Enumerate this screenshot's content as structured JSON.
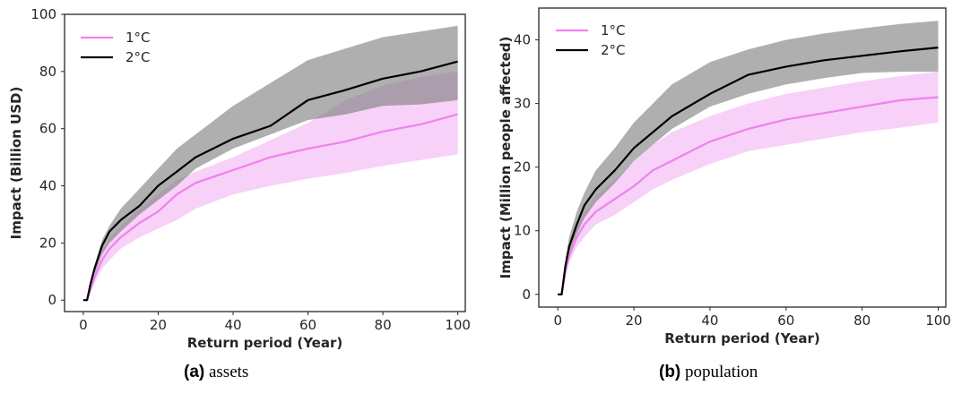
{
  "colors": {
    "one_deg": "#ee82ee",
    "two_deg": "#000000",
    "one_band": "#f2b8f2",
    "two_band": "#7a7a7a"
  },
  "chart_data": [
    {
      "type": "line",
      "caption_label": "(a)",
      "caption_text": "assets",
      "xlabel": "Return period (Year)",
      "ylabel": "Impact (Billion USD)",
      "xlim": [
        -5,
        102
      ],
      "ylim": [
        -4,
        100
      ],
      "xticks": [
        "0",
        "20",
        "40",
        "60",
        "80",
        "100"
      ],
      "yticks": [
        "0",
        "20",
        "40",
        "60",
        "80",
        "100"
      ],
      "legend_position": "top-left",
      "grid": false,
      "x": [
        0,
        1,
        2,
        3,
        5,
        7,
        10,
        15,
        20,
        25,
        30,
        40,
        50,
        60,
        70,
        80,
        90,
        100
      ],
      "series": [
        {
          "name": "1°C",
          "values": [
            0,
            0,
            4,
            8,
            14,
            18,
            22,
            27,
            31,
            37,
            41,
            45.5,
            50,
            53,
            55.5,
            59,
            61.5,
            65
          ],
          "lower": [
            0,
            0,
            3,
            6,
            11,
            14,
            18,
            22,
            25,
            28,
            32,
            37,
            40,
            42.5,
            44.5,
            47,
            49,
            51
          ],
          "upper": [
            0,
            0,
            5,
            10,
            17,
            22,
            26,
            32,
            37,
            42,
            45,
            50,
            56,
            62,
            70,
            75,
            78,
            80
          ]
        },
        {
          "name": "2°C",
          "values": [
            0,
            0,
            6,
            11,
            19,
            24,
            28,
            33,
            40,
            45,
            50,
            56.5,
            61,
            70,
            73.5,
            77.5,
            80,
            83.5
          ],
          "lower": [
            0,
            0,
            5,
            9,
            16,
            20,
            24,
            30,
            35,
            40,
            46,
            53,
            58,
            63,
            65,
            68,
            68.5,
            70
          ],
          "upper": [
            0,
            0,
            7,
            12,
            21,
            26,
            32,
            39,
            46,
            53,
            58,
            68,
            76,
            84,
            88,
            92,
            94,
            96
          ]
        }
      ]
    },
    {
      "type": "line",
      "caption_label": "(b)",
      "caption_text": "population",
      "xlabel": "Return period (Year)",
      "ylabel": "Impact (Million people affected)",
      "xlim": [
        -5,
        102
      ],
      "ylim": [
        -2,
        45
      ],
      "xticks": [
        "0",
        "20",
        "40",
        "60",
        "80",
        "100"
      ],
      "yticks": [
        "0",
        "10",
        "20",
        "30",
        "40"
      ],
      "legend_position": "top-left",
      "grid": false,
      "x": [
        0,
        1,
        2,
        3,
        5,
        7,
        10,
        15,
        20,
        25,
        30,
        40,
        50,
        60,
        70,
        80,
        90,
        100
      ],
      "series": [
        {
          "name": "1°C",
          "values": [
            0,
            0,
            3.5,
            6,
            9,
            11,
            13,
            15,
            17,
            19.5,
            21,
            24,
            26,
            27.5,
            28.5,
            29.5,
            30.5,
            31
          ],
          "lower": [
            0,
            0,
            3,
            5,
            7.5,
            9,
            11,
            12.5,
            14.5,
            16.5,
            18,
            20.5,
            22.5,
            23.5,
            24.5,
            25.5,
            26.2,
            27
          ],
          "upper": [
            0,
            0,
            4.5,
            7.5,
            11,
            13,
            15.5,
            18,
            21,
            23.5,
            25.5,
            28,
            30,
            31.5,
            32.5,
            33.5,
            34.3,
            35
          ]
        },
        {
          "name": "2°C",
          "values": [
            0,
            0,
            4.5,
            7.5,
            11,
            14,
            16.5,
            19.5,
            23,
            25.5,
            28,
            31.5,
            34.5,
            35.8,
            36.8,
            37.5,
            38.2,
            38.8
          ],
          "lower": [
            0,
            0,
            3.5,
            6.5,
            9.5,
            12,
            14.5,
            17.5,
            21,
            23.5,
            26,
            29.5,
            31.5,
            33,
            34,
            34.8,
            35,
            35
          ],
          "upper": [
            0,
            0,
            5.5,
            9,
            13,
            16,
            19.5,
            23,
            27,
            30,
            33,
            36.5,
            38.5,
            40,
            41,
            41.8,
            42.5,
            43
          ]
        }
      ]
    }
  ]
}
